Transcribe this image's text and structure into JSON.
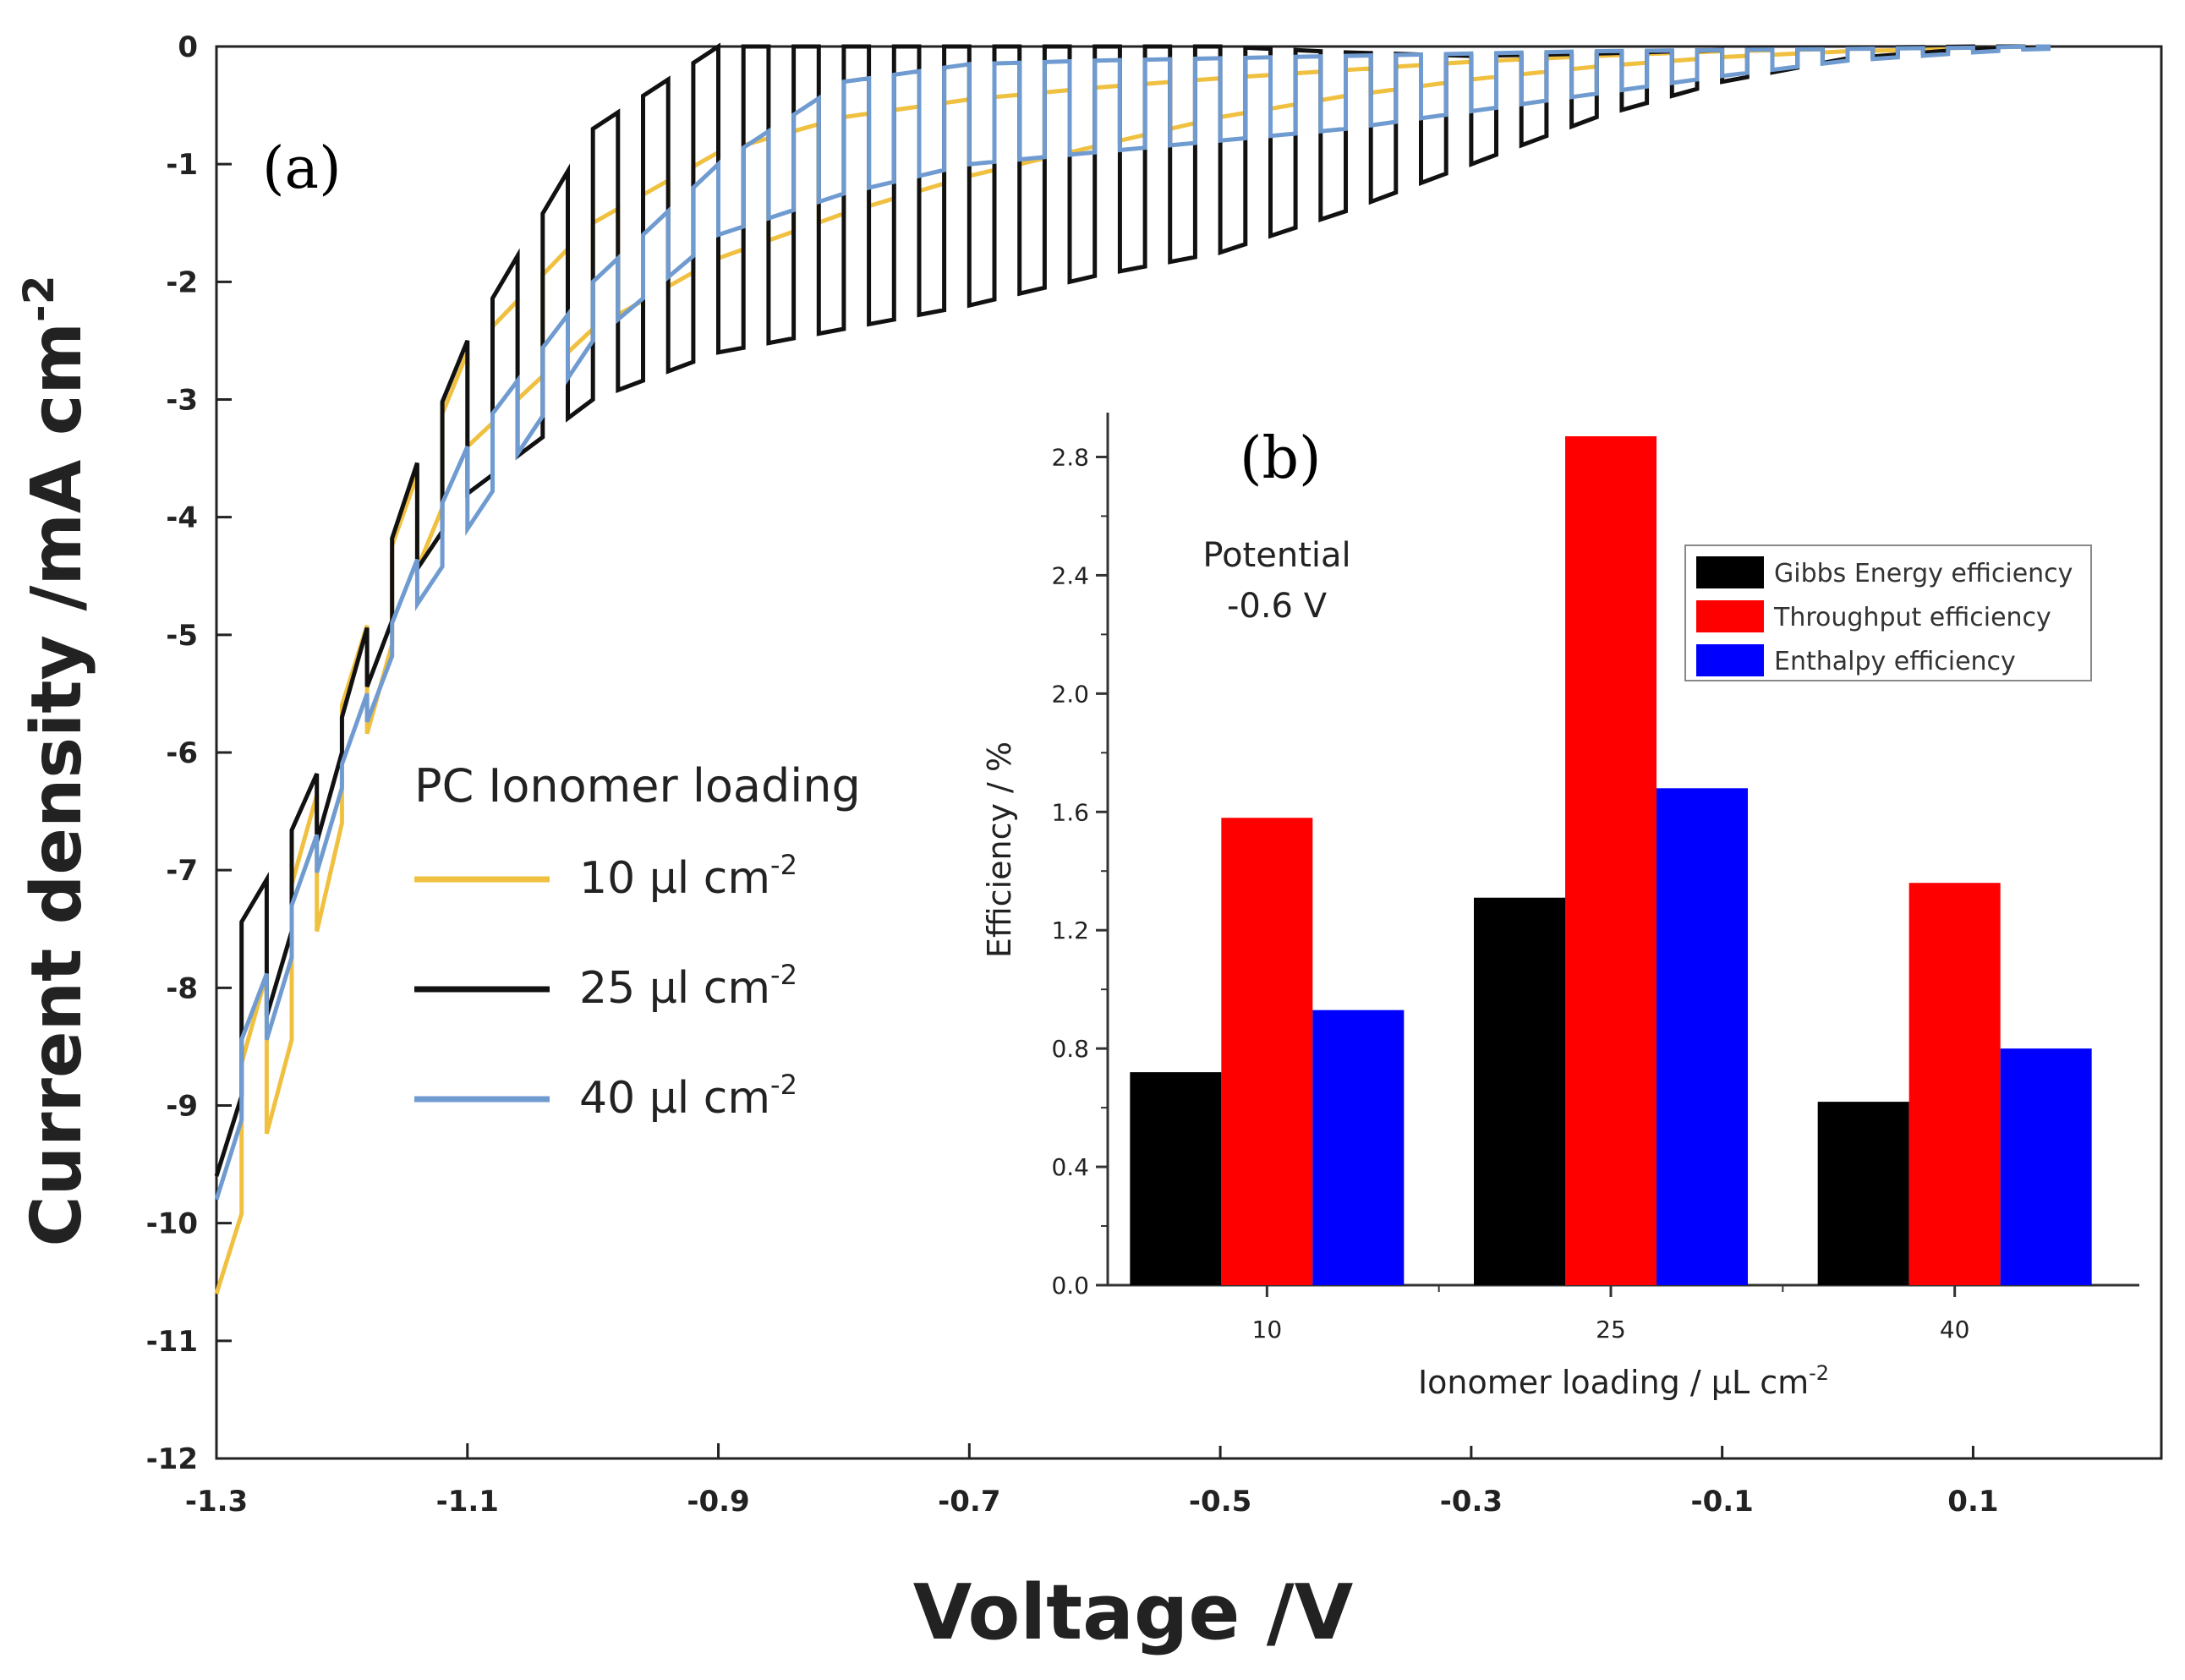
{
  "chart_data": [
    {
      "id": "a",
      "type": "line",
      "panel_label": "(a)",
      "xlabel": "Voltage /V",
      "ylabel": "Current density /mA cm",
      "ylabel_sup": "-2",
      "xlim": [
        -1.3,
        0.25
      ],
      "ylim": [
        -12,
        0
      ],
      "xticks": [
        -1.3,
        -1.1,
        -0.9,
        -0.7,
        -0.5,
        -0.3,
        -0.1,
        0.1
      ],
      "xtick_labels": [
        "-1.3",
        "-1.1",
        "-0.9",
        "-0.7",
        "-0.5",
        "-0.3",
        "-0.1",
        "0.1"
      ],
      "yticks": [
        0,
        -1,
        -2,
        -3,
        -4,
        -5,
        -6,
        -7,
        -8,
        -9,
        -10,
        -11,
        -12
      ],
      "ytick_labels": [
        "0",
        "-1",
        "-2",
        "-3",
        "-4",
        "-5",
        "-6",
        "-7",
        "-8",
        "-9",
        "-10",
        "-11",
        "-12"
      ],
      "legend_title": "PC Ionomer loading",
      "legend_position": "center-left",
      "chop_period_V": 0.04,
      "series": [
        {
          "name": "10 μl cm",
          "sup": "-2",
          "color": "#f0c040",
          "x": [
            -1.3,
            -1.25,
            -1.2,
            -1.15,
            -1.1,
            -1.0,
            -0.9,
            -0.8,
            -0.7,
            -0.6,
            -0.5,
            -0.4,
            -0.3,
            -0.2,
            -0.1,
            0.0,
            0.1,
            0.15
          ],
          "light": [
            -10.6,
            -8.9,
            -6.6,
            -4.7,
            -3.4,
            -2.4,
            -1.8,
            -1.42,
            -1.1,
            -0.85,
            -0.6,
            -0.42,
            -0.28,
            -0.17,
            -0.09,
            -0.04,
            -0.02,
            -0.01
          ],
          "dark": [
            -9.4,
            -7.5,
            -5.6,
            -3.9,
            -2.6,
            -1.5,
            -0.9,
            -0.6,
            -0.45,
            -0.35,
            -0.27,
            -0.2,
            -0.13,
            -0.08,
            -0.04,
            -0.02,
            -0.01,
            0.0
          ]
        },
        {
          "name": "25 μl cm",
          "sup": "-2",
          "color": "#111111",
          "x": [
            -1.3,
            -1.25,
            -1.2,
            -1.15,
            -1.1,
            -1.0,
            -0.9,
            -0.8,
            -0.7,
            -0.6,
            -0.5,
            -0.4,
            -0.3,
            -0.2,
            -0.1,
            0.0,
            0.1,
            0.15
          ],
          "light": [
            -9.6,
            -7.9,
            -6.0,
            -4.6,
            -3.8,
            -3.0,
            -2.6,
            -2.4,
            -2.2,
            -1.95,
            -1.75,
            -1.4,
            -1.0,
            -0.6,
            -0.3,
            -0.1,
            -0.02,
            -0.01
          ],
          "dark": [
            -7.8,
            -6.9,
            -5.7,
            -3.8,
            -2.5,
            -0.7,
            0.0,
            0.0,
            0.0,
            0.0,
            0.0,
            -0.05,
            -0.08,
            -0.06,
            -0.03,
            -0.01,
            0.0,
            0.0
          ]
        },
        {
          "name": "40 μl cm",
          "sup": "-2",
          "color": "#6f9bd1",
          "x": [
            -1.3,
            -1.25,
            -1.2,
            -1.15,
            -1.1,
            -1.0,
            -0.9,
            -0.8,
            -0.7,
            -0.6,
            -0.5,
            -0.4,
            -0.3,
            -0.2,
            -0.1,
            0.0,
            0.1,
            0.15
          ],
          "light": [
            -9.8,
            -8.1,
            -6.3,
            -4.9,
            -4.1,
            -2.5,
            -1.6,
            -1.25,
            -1.0,
            -0.9,
            -0.8,
            -0.7,
            -0.55,
            -0.4,
            -0.25,
            -0.12,
            -0.05,
            -0.02
          ],
          "dark": [
            -9.0,
            -7.6,
            -6.1,
            -4.6,
            -3.4,
            -2.0,
            -1.0,
            -0.3,
            -0.15,
            -0.12,
            -0.1,
            -0.08,
            -0.06,
            -0.04,
            -0.03,
            -0.02,
            -0.01,
            0.0
          ]
        }
      ]
    },
    {
      "id": "b",
      "type": "bar",
      "panel_label": "(b)",
      "xlabel": "Ionomer loading / μL cm",
      "xlabel_sup": "-2",
      "ylabel": "Efficiency / %",
      "ylim": [
        0,
        2.95
      ],
      "yticks": [
        0.0,
        0.4,
        0.8,
        1.2,
        1.6,
        2.0,
        2.4,
        2.8
      ],
      "ytick_labels": [
        "0.0",
        "0.4",
        "0.8",
        "1.2",
        "1.6",
        "2.0",
        "2.4",
        "2.8"
      ],
      "categories": [
        "10",
        "25",
        "40"
      ],
      "annotation": [
        "Potential",
        "-0.6 V"
      ],
      "legend_position": "top-right",
      "series": [
        {
          "name": "Gibbs Energy efficiency",
          "color": "#000000",
          "values": [
            0.72,
            1.31,
            0.62
          ]
        },
        {
          "name": "Throughput efficiency",
          "color": "#ff0000",
          "values": [
            1.58,
            2.87,
            1.36
          ]
        },
        {
          "name": "Enthalpy efficiency",
          "color": "#0000ff",
          "values": [
            0.93,
            1.68,
            0.8
          ]
        }
      ]
    }
  ]
}
